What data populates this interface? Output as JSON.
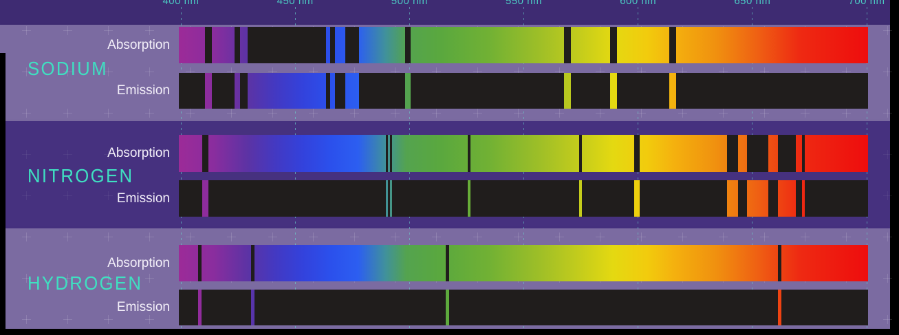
{
  "chart_data": {
    "type": "spectrum",
    "description": "Absorption and emission line spectra for three elements over a visible-light wavelength axis",
    "x_axis": {
      "unit": "nm",
      "min": 399,
      "max": 701,
      "tick_values": [
        400,
        450,
        500,
        550,
        600,
        650,
        700
      ],
      "tick_labels": [
        "400 nm",
        "450 nm",
        "500 nm",
        "550 nm",
        "600 nm",
        "650 nm",
        "700 nm"
      ]
    },
    "row_labels": {
      "absorption": "Absorption",
      "emission": "Emission"
    },
    "elements": [
      {
        "name": "SODIUM",
        "lines_nm": [
          [
            410.5,
            413.5
          ],
          [
            423.5,
            426.0
          ],
          [
            429.2,
            463.5
          ],
          [
            465.3,
            467.4
          ],
          [
            471.9,
            477.9
          ],
          [
            498.1,
            500.5
          ],
          [
            567.6,
            570.6
          ],
          [
            587.8,
            590.8
          ],
          [
            613.6,
            616.6
          ]
        ]
      },
      {
        "name": "NITROGEN",
        "lines_nm": [
          [
            409.3,
            412.0
          ],
          [
            489.7,
            490.6
          ],
          [
            491.5,
            492.4
          ],
          [
            525.5,
            526.8
          ],
          [
            574.2,
            575.4
          ],
          [
            598.3,
            600.7
          ],
          [
            638.9,
            643.7
          ],
          [
            647.6,
            657.0
          ],
          [
            661.2,
            669.0
          ],
          [
            671.7,
            672.9
          ]
        ]
      },
      {
        "name": "HYDROGEN",
        "lines_nm": [
          [
            407.5,
            409.0
          ],
          [
            430.7,
            432.2
          ],
          [
            515.8,
            517.3
          ],
          [
            661.2,
            662.7
          ]
        ]
      }
    ],
    "spectrum_gradient": [
      {
        "pos": 0,
        "color": "#9c2b98"
      },
      {
        "pos": 5,
        "color": "#8a2d9e"
      },
      {
        "pos": 10,
        "color": "#5c33a4"
      },
      {
        "pos": 14,
        "color": "#4339c2"
      },
      {
        "pos": 18,
        "color": "#3342dc"
      },
      {
        "pos": 22,
        "color": "#2b50ec"
      },
      {
        "pos": 26,
        "color": "#2c5ef1"
      },
      {
        "pos": 30,
        "color": "#40919b"
      },
      {
        "pos": 33,
        "color": "#54a34f"
      },
      {
        "pos": 38,
        "color": "#5aa83e"
      },
      {
        "pos": 45,
        "color": "#71b134"
      },
      {
        "pos": 52,
        "color": "#9cbe28"
      },
      {
        "pos": 58,
        "color": "#c3cc1c"
      },
      {
        "pos": 63,
        "color": "#e4d911"
      },
      {
        "pos": 68,
        "color": "#f2cb0d"
      },
      {
        "pos": 72,
        "color": "#f4b00e"
      },
      {
        "pos": 78,
        "color": "#f0900f"
      },
      {
        "pos": 84,
        "color": "#ef6013"
      },
      {
        "pos": 90,
        "color": "#ee2a12"
      },
      {
        "pos": 100,
        "color": "#ee0d0d"
      }
    ],
    "legend_position": "none",
    "grid": "dashed vertical tick lines at each 50 nm"
  },
  "colors": {
    "page_edge": "#000000",
    "header_bg": "#3e2b72",
    "section_light_bg": "#7b6ba1",
    "section_dark_bg": "#46317f",
    "element_label": "#3fe0c1",
    "row_label": "#f3eff9",
    "tick_label": "#4cc8c2",
    "bar_dark": "#201d1c"
  }
}
